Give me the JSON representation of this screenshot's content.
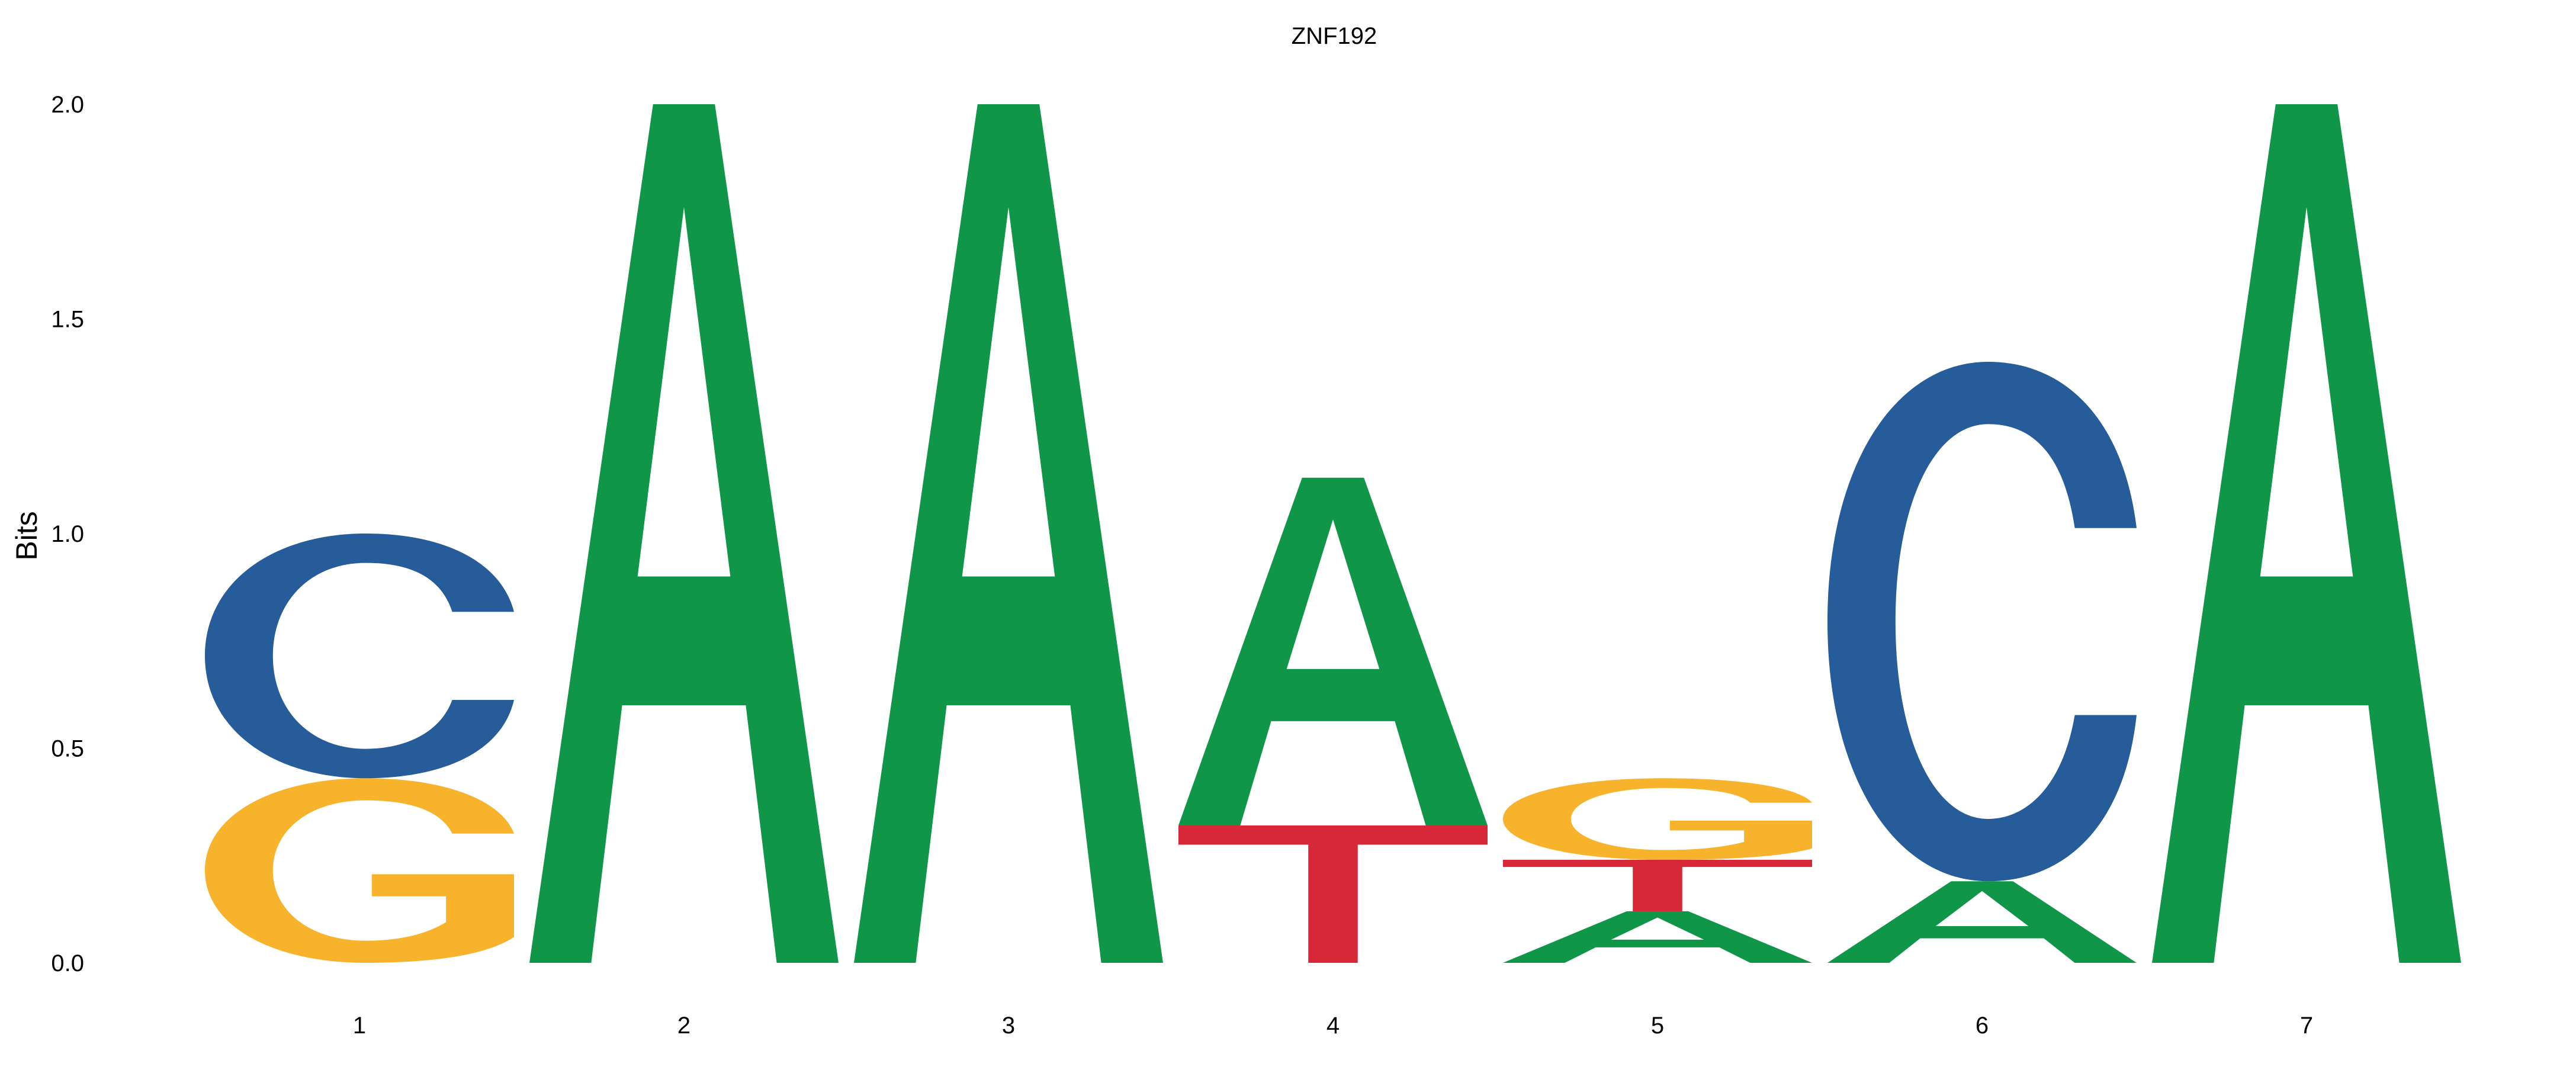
{
  "chart_data": {
    "type": "sequence-logo",
    "title": "ZNF192",
    "ylabel": "Bits",
    "xlabel": "",
    "ylim": [
      0,
      2
    ],
    "y_ticks": [
      "0.0",
      "0.5",
      "1.0",
      "1.5",
      "2.0"
    ],
    "grid": false,
    "legend": "none",
    "colors": {
      "A": "#109648",
      "C": "#255C99",
      "G": "#F7B32B",
      "T": "#D62839"
    },
    "positions": [
      {
        "label": "1",
        "letters": [
          {
            "base": "G",
            "bits": 0.43
          },
          {
            "base": "C",
            "bits": 0.57
          }
        ]
      },
      {
        "label": "2",
        "letters": [
          {
            "base": "A",
            "bits": 2.0
          }
        ]
      },
      {
        "label": "3",
        "letters": [
          {
            "base": "A",
            "bits": 2.0
          }
        ]
      },
      {
        "label": "4",
        "letters": [
          {
            "base": "T",
            "bits": 0.32
          },
          {
            "base": "A",
            "bits": 0.81
          }
        ]
      },
      {
        "label": "5",
        "letters": [
          {
            "base": "A",
            "bits": 0.12
          },
          {
            "base": "T",
            "bits": 0.12
          },
          {
            "base": "G",
            "bits": 0.19
          }
        ]
      },
      {
        "label": "6",
        "letters": [
          {
            "base": "A",
            "bits": 0.19
          },
          {
            "base": "C",
            "bits": 1.21
          }
        ]
      },
      {
        "label": "7",
        "letters": [
          {
            "base": "A",
            "bits": 2.0
          }
        ]
      }
    ]
  }
}
